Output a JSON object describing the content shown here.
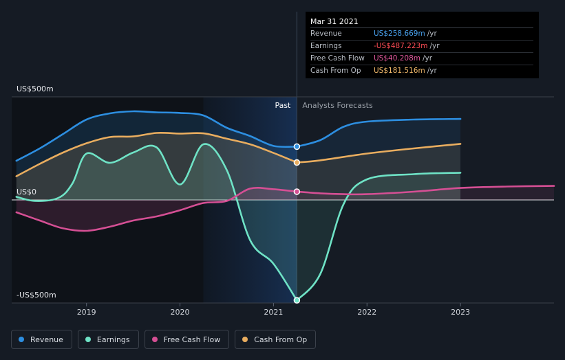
{
  "tooltip": {
    "date": "Mar 31 2021",
    "rows": [
      {
        "name": "Revenue",
        "value": "US$258.669m",
        "unit": "/yr",
        "color": "#4aa3f0"
      },
      {
        "name": "Earnings",
        "value": "-US$487.223m",
        "unit": "/yr",
        "color": "#ff4d55"
      },
      {
        "name": "Free Cash Flow",
        "value": "US$40.208m",
        "unit": "/yr",
        "color": "#e0589c"
      },
      {
        "name": "Cash From Op",
        "value": "US$181.516m",
        "unit": "/yr",
        "color": "#f0b86a"
      }
    ]
  },
  "legend": [
    {
      "label": "Revenue",
      "color": "#2d8ee0"
    },
    {
      "label": "Earnings",
      "color": "#6fe3c6"
    },
    {
      "label": "Free Cash Flow",
      "color": "#d54f94"
    },
    {
      "label": "Cash From Op",
      "color": "#e9ad5f"
    }
  ],
  "chart_data": {
    "type": "line",
    "title": "",
    "xlabel": "",
    "ylabel": "",
    "y_tick_labels": {
      "top": "US$500m",
      "zero": "US$0",
      "bottom": "-US$500m"
    },
    "ylim": [
      -500,
      500
    ],
    "xlim": [
      2018.2,
      2024.0
    ],
    "x_ticks": [
      2019,
      2020,
      2021,
      2022,
      2023
    ],
    "x_tick_labels": [
      "2019",
      "2020",
      "2021",
      "2022",
      "2023"
    ],
    "past_label": "Past",
    "forecast_label": "Analysts Forecasts",
    "past_end_x": 2021.25,
    "shaded_past_start_x": 2020.25,
    "series": [
      {
        "name": "Revenue",
        "color": "#2d8ee0",
        "points": [
          [
            2018.25,
            190
          ],
          [
            2018.5,
            250
          ],
          [
            2018.75,
            320
          ],
          [
            2019.0,
            390
          ],
          [
            2019.25,
            420
          ],
          [
            2019.5,
            430
          ],
          [
            2019.75,
            425
          ],
          [
            2020.0,
            422
          ],
          [
            2020.25,
            410
          ],
          [
            2020.5,
            350
          ],
          [
            2020.75,
            310
          ],
          [
            2021.0,
            262
          ],
          [
            2021.25,
            258.669
          ]
        ],
        "forecast": [
          [
            2021.25,
            258.669
          ],
          [
            2021.5,
            290
          ],
          [
            2021.75,
            355
          ],
          [
            2022.0,
            380
          ],
          [
            2022.5,
            390
          ],
          [
            2023.0,
            393
          ]
        ]
      },
      {
        "name": "Earnings",
        "color": "#6fe3c6",
        "points": [
          [
            2018.25,
            15
          ],
          [
            2018.45,
            -5
          ],
          [
            2018.7,
            10
          ],
          [
            2018.85,
            80
          ],
          [
            2019.0,
            225
          ],
          [
            2019.25,
            180
          ],
          [
            2019.5,
            230
          ],
          [
            2019.75,
            255
          ],
          [
            2020.0,
            75
          ],
          [
            2020.25,
            270
          ],
          [
            2020.5,
            145
          ],
          [
            2020.75,
            -195
          ],
          [
            2021.0,
            -310
          ],
          [
            2021.25,
            -487.223
          ]
        ],
        "forecast": [
          [
            2021.25,
            -487.223
          ],
          [
            2021.5,
            -360
          ],
          [
            2021.75,
            -20
          ],
          [
            2022.0,
            100
          ],
          [
            2022.5,
            125
          ],
          [
            2023.0,
            132
          ]
        ]
      },
      {
        "name": "Free Cash Flow",
        "color": "#d54f94",
        "points": [
          [
            2018.25,
            -60
          ],
          [
            2018.5,
            -100
          ],
          [
            2018.75,
            -138
          ],
          [
            2019.0,
            -150
          ],
          [
            2019.25,
            -130
          ],
          [
            2019.5,
            -100
          ],
          [
            2019.75,
            -80
          ],
          [
            2020.0,
            -50
          ],
          [
            2020.25,
            -15
          ],
          [
            2020.5,
            -5
          ],
          [
            2020.75,
            55
          ],
          [
            2021.0,
            52
          ],
          [
            2021.25,
            40.208
          ]
        ],
        "forecast": [
          [
            2021.25,
            40.208
          ],
          [
            2021.5,
            32
          ],
          [
            2021.75,
            28
          ],
          [
            2022.0,
            28
          ],
          [
            2022.5,
            40
          ],
          [
            2023.0,
            58
          ],
          [
            2023.5,
            65
          ],
          [
            2024.0,
            68
          ]
        ]
      },
      {
        "name": "Cash From Op",
        "color": "#e9ad5f",
        "points": [
          [
            2018.25,
            115
          ],
          [
            2018.5,
            175
          ],
          [
            2018.75,
            230
          ],
          [
            2019.0,
            275
          ],
          [
            2019.25,
            305
          ],
          [
            2019.5,
            308
          ],
          [
            2019.75,
            325
          ],
          [
            2020.0,
            322
          ],
          [
            2020.25,
            323
          ],
          [
            2020.5,
            297
          ],
          [
            2020.75,
            270
          ],
          [
            2021.0,
            228
          ],
          [
            2021.25,
            181.516
          ]
        ],
        "forecast": [
          [
            2021.25,
            181.516
          ],
          [
            2021.5,
            192
          ],
          [
            2022.0,
            225
          ],
          [
            2022.5,
            250
          ],
          [
            2023.0,
            272
          ]
        ]
      }
    ]
  }
}
